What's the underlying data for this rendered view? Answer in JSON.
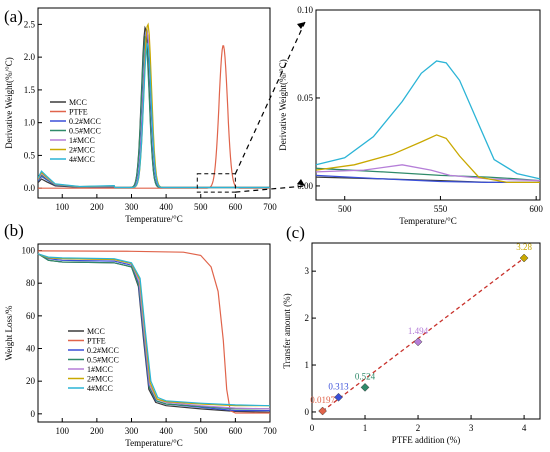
{
  "figure": {
    "panel_labels": [
      "(a)",
      "(b)",
      "(c)"
    ],
    "colors": {
      "MCC": "#3a3a3a",
      "PTFE": "#e0644b",
      "0.2#MCC": "#3a4fd8",
      "0.5#MCC": "#2f8a6a",
      "1#MCC": "#b57ed8",
      "2#MCC": "#c9a800",
      "4#MCC": "#2bb4d6",
      "trend": "#c8312b"
    }
  },
  "chart_data": [
    {
      "id": "a",
      "type": "line",
      "xlabel": "Temperature/°C",
      "ylabel": "Derivative Weight(%/°C)",
      "xlim": [
        30,
        700
      ],
      "ylim": [
        -0.15,
        2.75
      ],
      "xticks": [
        100,
        200,
        300,
        400,
        500,
        600,
        700
      ],
      "yticks": [
        0.0,
        0.5,
        1.0,
        1.5,
        2.0,
        2.5
      ],
      "ytick_labels": [
        "0.0",
        "0.5",
        "1.0",
        "1.5",
        "2.0",
        "2.5"
      ],
      "legend": "middle-left",
      "zoom_box": {
        "x": [
          490,
          600
        ],
        "y": [
          -0.06,
          0.22
        ]
      },
      "series": [
        {
          "name": "MCC",
          "peak": {
            "x": 340,
            "y": 2.45
          }
        },
        {
          "name": "PTFE",
          "peak": {
            "x": 565,
            "y": 2.18
          }
        },
        {
          "name": "0.2#MCC",
          "peak": {
            "x": 344,
            "y": 2.4
          }
        },
        {
          "name": "0.5#MCC",
          "peak": {
            "x": 340,
            "y": 2.3
          }
        },
        {
          "name": "1#MCC",
          "peak": {
            "x": 345,
            "y": 2.38
          }
        },
        {
          "name": "2#MCC",
          "peak": {
            "x": 347,
            "y": 2.5
          }
        },
        {
          "name": "4#MCC",
          "peak": {
            "x": 346,
            "y": 2.2
          }
        }
      ]
    },
    {
      "id": "a-inset",
      "type": "line",
      "xlabel": "Temperature/°C",
      "ylabel": "Derivative Weight(%/°C)",
      "xlim": [
        485,
        602
      ],
      "ylim": [
        -0.008,
        0.1
      ],
      "xticks": [
        500,
        550,
        600
      ],
      "yticks": [
        0.0,
        0.05,
        0.1
      ],
      "ytick_labels": [
        "0.00",
        "0.05",
        "0.10"
      ],
      "series": [
        {
          "name": "MCC",
          "points": [
            [
              485,
              0.005
            ],
            [
              520,
              0.004
            ],
            [
              550,
              0.003
            ],
            [
              575,
              0.002
            ],
            [
              602,
              0.002
            ]
          ]
        },
        {
          "name": "0.2#MCC",
          "points": [
            [
              485,
              0.006
            ],
            [
              520,
              0.004
            ],
            [
              550,
              0.0025
            ],
            [
              575,
              0.002
            ],
            [
              602,
              0.002
            ]
          ]
        },
        {
          "name": "0.5#MCC",
          "points": [
            [
              485,
              0.01
            ],
            [
              520,
              0.008
            ],
            [
              550,
              0.006
            ],
            [
              575,
              0.005
            ],
            [
              590,
              0.004
            ],
            [
              602,
              0.003
            ]
          ]
        },
        {
          "name": "1#MCC",
          "points": [
            [
              485,
              0.008
            ],
            [
              510,
              0.009
            ],
            [
              530,
              0.012
            ],
            [
              545,
              0.009
            ],
            [
              555,
              0.006
            ],
            [
              575,
              0.004
            ],
            [
              602,
              0.003
            ]
          ]
        },
        {
          "name": "2#MCC",
          "points": [
            [
              485,
              0.009
            ],
            [
              505,
              0.012
            ],
            [
              525,
              0.018
            ],
            [
              540,
              0.025
            ],
            [
              548,
              0.029
            ],
            [
              553,
              0.027
            ],
            [
              560,
              0.017
            ],
            [
              570,
              0.005
            ],
            [
              585,
              0.002
            ],
            [
              602,
              0.002
            ]
          ]
        },
        {
          "name": "4#MCC",
          "points": [
            [
              485,
              0.012
            ],
            [
              500,
              0.016
            ],
            [
              515,
              0.028
            ],
            [
              530,
              0.048
            ],
            [
              540,
              0.064
            ],
            [
              548,
              0.071
            ],
            [
              553,
              0.07
            ],
            [
              560,
              0.06
            ],
            [
              570,
              0.035
            ],
            [
              578,
              0.015
            ],
            [
              590,
              0.007
            ],
            [
              602,
              0.004
            ]
          ]
        }
      ]
    },
    {
      "id": "b",
      "type": "line",
      "xlabel": "Temperature/°C",
      "ylabel": "Weight Loss/%",
      "xlim": [
        30,
        700
      ],
      "ylim": [
        -5,
        104
      ],
      "xticks": [
        100,
        200,
        300,
        400,
        500,
        600,
        700
      ],
      "yticks": [
        0,
        20,
        40,
        60,
        80,
        100
      ],
      "legend": "bottom-center",
      "series": [
        {
          "name": "MCC",
          "points": [
            [
              30,
              98
            ],
            [
              60,
              94
            ],
            [
              100,
              93
            ],
            [
              250,
              92.5
            ],
            [
              300,
              90
            ],
            [
              320,
              78
            ],
            [
              335,
              45
            ],
            [
              350,
              15
            ],
            [
              370,
              7
            ],
            [
              400,
              5
            ],
            [
              500,
              3
            ],
            [
              600,
              1.5
            ],
            [
              700,
              1
            ]
          ]
        },
        {
          "name": "PTFE",
          "points": [
            [
              30,
              99.8
            ],
            [
              300,
              99.5
            ],
            [
              450,
              99
            ],
            [
              500,
              97
            ],
            [
              530,
              90
            ],
            [
              550,
              75
            ],
            [
              565,
              45
            ],
            [
              575,
              15
            ],
            [
              585,
              2
            ],
            [
              600,
              0.5
            ],
            [
              700,
              0.5
            ]
          ]
        },
        {
          "name": "0.2#MCC",
          "points": [
            [
              30,
              98
            ],
            [
              60,
              95
            ],
            [
              100,
              94
            ],
            [
              250,
              93.5
            ],
            [
              300,
              91
            ],
            [
              320,
              80
            ],
            [
              335,
              48
            ],
            [
              350,
              17
            ],
            [
              370,
              8
            ],
            [
              400,
              6
            ],
            [
              500,
              4
            ],
            [
              600,
              2
            ],
            [
              700,
              2
            ]
          ]
        },
        {
          "name": "0.5#MCC",
          "points": [
            [
              30,
              98
            ],
            [
              60,
              94
            ],
            [
              100,
              93
            ],
            [
              250,
              92.5
            ],
            [
              300,
              90
            ],
            [
              322,
              78
            ],
            [
              337,
              46
            ],
            [
              352,
              16
            ],
            [
              372,
              8
            ],
            [
              400,
              6
            ],
            [
              500,
              4.5
            ],
            [
              600,
              3
            ],
            [
              700,
              3
            ]
          ]
        },
        {
          "name": "1#MCC",
          "points": [
            [
              30,
              98
            ],
            [
              60,
              95.5
            ],
            [
              100,
              95
            ],
            [
              250,
              94.5
            ],
            [
              300,
              92
            ],
            [
              322,
              81
            ],
            [
              337,
              49
            ],
            [
              352,
              18
            ],
            [
              372,
              9
            ],
            [
              400,
              7
            ],
            [
              500,
              5
            ],
            [
              600,
              3.5
            ],
            [
              700,
              3
            ]
          ]
        },
        {
          "name": "2#MCC",
          "points": [
            [
              30,
              98
            ],
            [
              60,
              95.5
            ],
            [
              100,
              95
            ],
            [
              250,
              94.5
            ],
            [
              300,
              92
            ],
            [
              324,
              82
            ],
            [
              339,
              50
            ],
            [
              354,
              19
            ],
            [
              374,
              9
            ],
            [
              400,
              7.5
            ],
            [
              500,
              6
            ],
            [
              600,
              5
            ],
            [
              700,
              5
            ]
          ]
        },
        {
          "name": "4#MCC",
          "points": [
            [
              30,
              98
            ],
            [
              60,
              96
            ],
            [
              100,
              95.5
            ],
            [
              250,
              95
            ],
            [
              300,
              92.5
            ],
            [
              325,
              83
            ],
            [
              340,
              51
            ],
            [
              356,
              20
            ],
            [
              376,
              10
            ],
            [
              400,
              8
            ],
            [
              500,
              6.5
            ],
            [
              600,
              5.5
            ],
            [
              700,
              5
            ]
          ]
        }
      ]
    },
    {
      "id": "c",
      "type": "scatter",
      "xlabel": "PTFE addition (%)",
      "ylabel": "Transfer amount (%)",
      "xlim": [
        0,
        4.3
      ],
      "ylim": [
        -0.15,
        3.6
      ],
      "xticks": [
        0,
        1,
        2,
        3,
        4
      ],
      "yticks": [
        0,
        1,
        2,
        3
      ],
      "points": [
        {
          "name": "0.2#MCC",
          "x": 0.2,
          "y": 0.0197,
          "label": "0.0197"
        },
        {
          "name": "0.5#MCC",
          "x": 0.5,
          "y": 0.313,
          "label": "0.313"
        },
        {
          "name": "1#MCC",
          "x": 1.0,
          "y": 0.524,
          "label": "0.524"
        },
        {
          "name": "2#MCC",
          "x": 2.0,
          "y": 1.494,
          "label": "1.494"
        },
        {
          "name": "4#MCC",
          "x": 4.0,
          "y": 3.28,
          "label": "3.28"
        }
      ],
      "point_colors": [
        "#e0644b",
        "#3a4fd8",
        "#2f8a6a",
        "#b57ed8",
        "#c9a800"
      ],
      "label_colors": [
        "#e0644b",
        "#3a4fd8",
        "#2f8a6a",
        "#b57ed8",
        "#c9a800"
      ]
    }
  ]
}
